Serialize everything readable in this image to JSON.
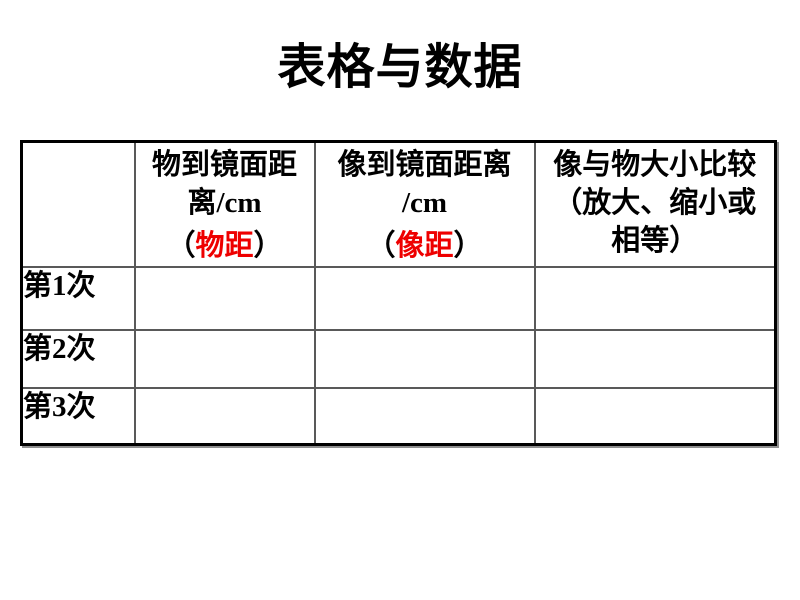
{
  "title": "表格与数据",
  "colors": {
    "background": "#ffffff",
    "text": "#000000",
    "highlight_red": "#ee0000",
    "grid_line": "#595959",
    "outer_border": "#000000"
  },
  "table": {
    "header": {
      "corner": "",
      "object_distance": {
        "line1": "物到镜面距",
        "line2": "离/cm",
        "paren_open": "（",
        "red_label": "物距",
        "paren_close": "）"
      },
      "image_distance": {
        "line1": "像到镜面距离",
        "line2": "/cm",
        "paren_open": "（",
        "red_label": "像距",
        "paren_close": "）"
      },
      "size_comparison": {
        "line1": "像与物大小比较",
        "line2": "（放大、缩小或",
        "line3": "相等）"
      }
    },
    "rows": [
      {
        "label": "第1次",
        "object_distance": "",
        "image_distance": "",
        "size_comparison": ""
      },
      {
        "label": "第2次",
        "object_distance": "",
        "image_distance": "",
        "size_comparison": ""
      },
      {
        "label": "第3次",
        "object_distance": "",
        "image_distance": "",
        "size_comparison": ""
      }
    ]
  }
}
